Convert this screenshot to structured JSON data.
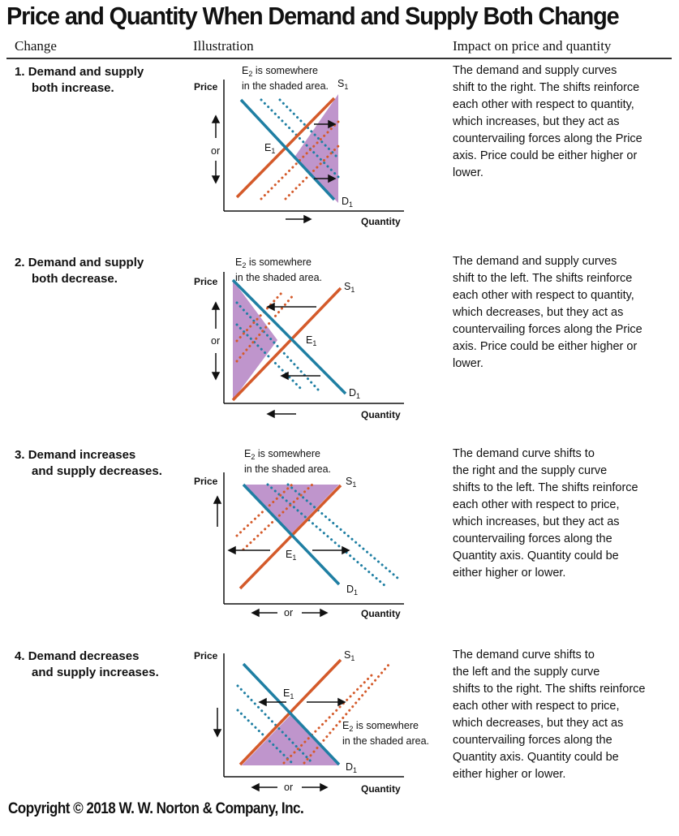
{
  "title": "Price and Quantity When Demand and Supply Both Change",
  "columns": {
    "change": "Change",
    "illustration": "Illustration",
    "impact": "Impact on price and quantity"
  },
  "colors": {
    "demand": "#1f7fa3",
    "supply": "#d45a2a",
    "shade": "#b88ac7"
  },
  "axis": {
    "price": "Price",
    "quantity": "Quantity",
    "or": "or"
  },
  "curve_labels": {
    "supply": "S",
    "demand": "D",
    "equilibrium": "E",
    "subscript": "1"
  },
  "rows": [
    {
      "number": "1.",
      "label_lines": [
        "Demand and supply",
        "both increase."
      ],
      "note_line1": "E",
      "note_sub": "2",
      "note_rest": " is somewhere",
      "note_line2": "in the shaded area.",
      "impact_lines": [
        "The demand and supply curves",
        "shift to the right. The shifts reinforce",
        "each other with respect to quantity,",
        "which increases, but they act as",
        "countervailing forces along the Price",
        "axis. Price could be either higher or",
        "lower."
      ]
    },
    {
      "number": "2.",
      "label_lines": [
        "Demand and supply",
        "both decrease."
      ],
      "note_line1": "E",
      "note_sub": "2",
      "note_rest": " is somewhere",
      "note_line2": "in the shaded area.",
      "impact_lines": [
        "The demand and supply curves",
        "shift to the left. The shifts reinforce",
        "each other with respect to quantity,",
        "which decreases, but they act as",
        "countervailing forces along the Price",
        "axis. Price could be either higher or",
        "lower."
      ]
    },
    {
      "number": "3.",
      "label_lines": [
        "Demand increases",
        "and supply decreases."
      ],
      "note_line1": "E",
      "note_sub": "2",
      "note_rest": " is somewhere",
      "note_line2": "in the shaded area.",
      "impact_lines": [
        "The demand curve shifts to",
        "the right and the supply curve",
        "shifts to the left. The shifts reinforce",
        "each other with respect to price,",
        "which increases, but they act as",
        "countervailing forces along the",
        "Quantity axis. Quantity could be",
        "either higher or lower."
      ]
    },
    {
      "number": "4.",
      "label_lines": [
        "Demand decreases",
        "and supply increases."
      ],
      "note_line1": "E",
      "note_sub": "2",
      "note_rest": " is somewhere",
      "note_line2": "in the shaded area.",
      "impact_lines": [
        "The demand curve shifts to",
        "the left and the supply curve",
        "shifts to the right. The shifts reinforce",
        "each other with respect to price,",
        "which decreases, but they act as",
        "countervailing forces along the",
        "Quantity axis. Quantity could be",
        "either higher or lower."
      ]
    }
  ],
  "footer": "Copyright © 2018 W. W. Norton & Company, Inc."
}
